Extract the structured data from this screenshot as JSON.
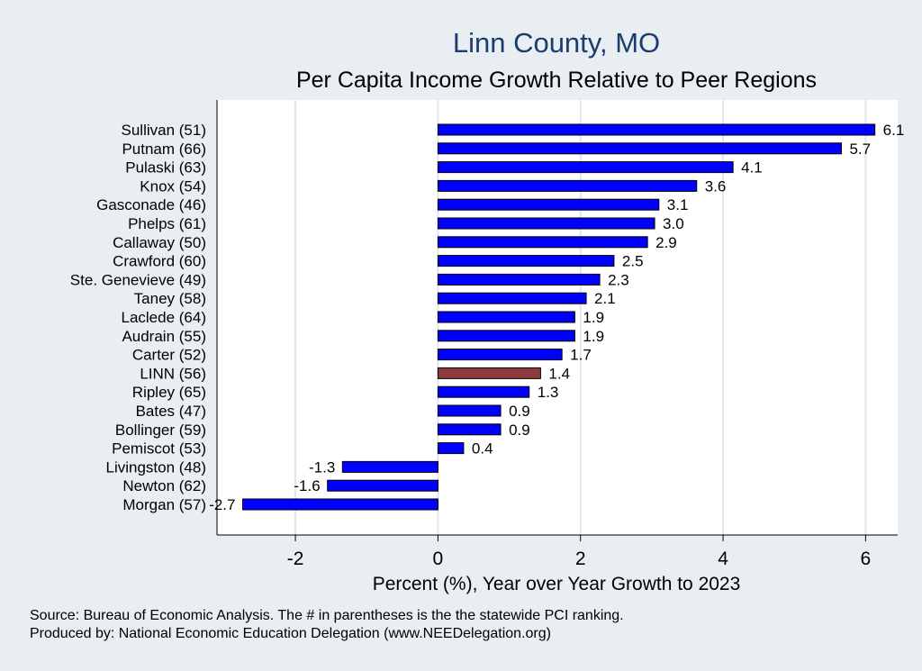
{
  "chart_data": {
    "type": "bar",
    "orientation": "horizontal",
    "title": "Linn County, MO",
    "subtitle": "Per Capita Income Growth Relative to Peer Regions",
    "xlabel": "Percent (%), Year over Year Growth to 2023",
    "ylabel": "",
    "xlim": [
      -3.1,
      6.45
    ],
    "xticks": [
      -2,
      0,
      2,
      4,
      6
    ],
    "xtick_labels": [
      "-2",
      "0",
      "2",
      "4",
      "6"
    ],
    "grid": "vertical",
    "categories": [
      "Sullivan (51)",
      "Putnam (66)",
      "Pulaski (63)",
      "Knox (54)",
      "Gasconade (46)",
      "Phelps (61)",
      "Callaway (50)",
      "Crawford (60)",
      "Ste. Genevieve (49)",
      "Taney (58)",
      "Laclede (64)",
      "Audrain (55)",
      "Carter (52)",
      "LINN (56)",
      "Ripley (65)",
      "Bates (47)",
      "Bollinger (59)",
      "Pemiscot (53)",
      "Livingston (48)",
      "Newton (62)",
      "Morgan (57)"
    ],
    "values": [
      6.13,
      5.66,
      4.14,
      3.63,
      3.1,
      3.04,
      2.94,
      2.47,
      2.27,
      2.08,
      1.92,
      1.92,
      1.74,
      1.44,
      1.28,
      0.88,
      0.88,
      0.36,
      -1.34,
      -1.55,
      -2.74
    ],
    "value_labels": [
      "6.1",
      "5.7",
      "4.1",
      "3.6",
      "3.1",
      "3.0",
      "2.9",
      "2.5",
      "2.3",
      "2.1",
      "1.9",
      "1.9",
      "1.7",
      "1.4",
      "1.3",
      "0.9",
      "0.9",
      "0.4",
      "-1.3",
      "-1.6",
      "-2.7"
    ],
    "highlight_category": "LINN (56)",
    "colors": {
      "bar": "#0000ff",
      "highlight": "#8f3a3c",
      "title": "#1a3d6e",
      "grid": "#dde8eb",
      "plot_bg": "#ffffff",
      "page_bg": "#e8eef1"
    }
  },
  "notes": {
    "source": "Source: Bureau of Economic Analysis. The # in parentheses is the the statewide PCI ranking.",
    "producer": "Produced by: National Economic Education Delegation (www.NEEDelegation.org)"
  }
}
